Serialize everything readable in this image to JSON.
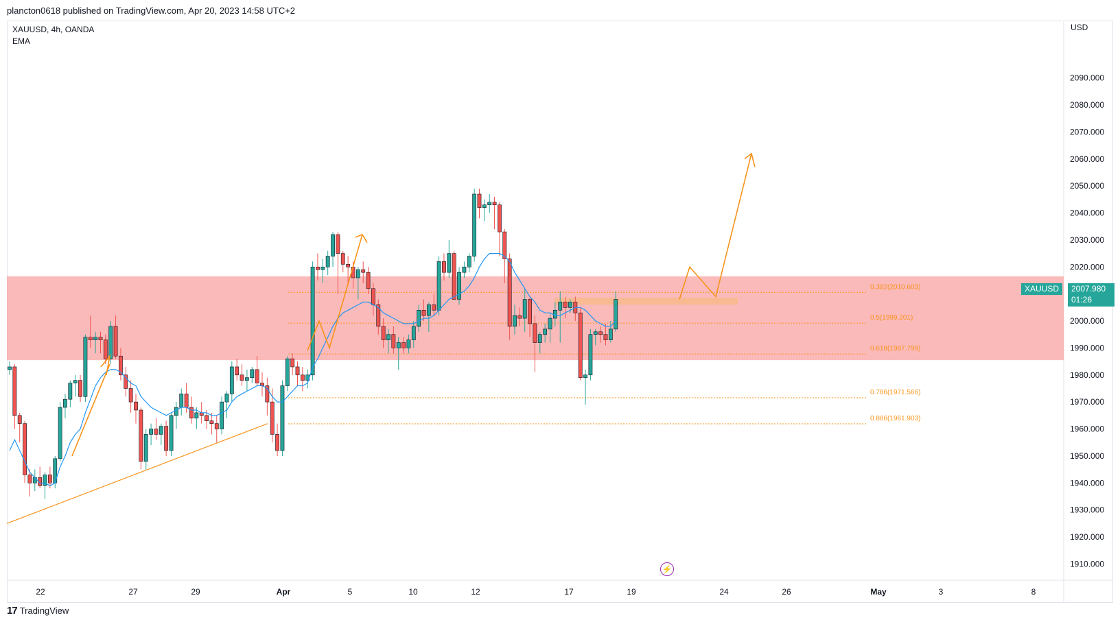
{
  "header": {
    "published": "plancton0618 published on TradingView.com, Apr 20, 2023 14:58 UTC+2"
  },
  "legend": {
    "symbol": "XAUUSD, 4h, OANDA",
    "indicator": "EMA"
  },
  "price_scale": {
    "currency": "USD"
  },
  "last_price": {
    "symbol": "XAUUSD",
    "price": "2007.980",
    "countdown": "01:26"
  },
  "footer": {
    "brand": "TradingView"
  },
  "colors": {
    "up": "#26a69a",
    "down": "#ef5350",
    "zone": "#f9a3a3",
    "ema": "#2196f3",
    "drawing": "#f7931a",
    "highlight": "#f9b98a"
  },
  "chart_data": {
    "type": "candlestick",
    "y_ticks": [
      "2090.000",
      "2080.000",
      "2070.000",
      "2060.000",
      "2050.000",
      "2040.000",
      "2030.000",
      "2020.000",
      "2010.000",
      "2000.000",
      "1990.000",
      "1980.000",
      "1970.000",
      "1960.000",
      "1950.000",
      "1940.000",
      "1930.000",
      "1920.000",
      "1910.000"
    ],
    "x_ticks": [
      {
        "label": "22",
        "bold": false
      },
      {
        "label": "27",
        "bold": false
      },
      {
        "label": "29",
        "bold": false
      },
      {
        "label": "Apr",
        "bold": true
      },
      {
        "label": "5",
        "bold": false
      },
      {
        "label": "10",
        "bold": false
      },
      {
        "label": "12",
        "bold": false
      },
      {
        "label": "17",
        "bold": false
      },
      {
        "label": "19",
        "bold": false
      },
      {
        "label": "24",
        "bold": false
      },
      {
        "label": "26",
        "bold": false
      },
      {
        "label": "May",
        "bold": true
      },
      {
        "label": "3",
        "bold": false
      },
      {
        "label": "8",
        "bold": false
      }
    ],
    "ylim": [
      1904,
      2111
    ],
    "fib_levels": [
      {
        "label": "0.382(2010.603)",
        "value": 2010.603
      },
      {
        "label": "0.5(1999.201)",
        "value": 1999.201
      },
      {
        "label": "0.618(1987.799)",
        "value": 1987.799
      },
      {
        "label": "0.786(1971.566)",
        "value": 1971.566
      },
      {
        "label": "0.886(1961.903)",
        "value": 1961.903
      }
    ],
    "zone": {
      "from": 1985.5,
      "to": 2016.5
    },
    "highlight_zone": {
      "from": 2006.0,
      "to": 2008.5
    },
    "candles": [
      [
        1982,
        1985,
        1980,
        1983
      ],
      [
        1983,
        1984,
        1960,
        1965
      ],
      [
        1965,
        1966,
        1955,
        1962
      ],
      [
        1962,
        1963,
        1940,
        1943
      ],
      [
        1943,
        1945,
        1935,
        1940
      ],
      [
        1940,
        1945,
        1937,
        1942
      ],
      [
        1942,
        1946,
        1938,
        1939
      ],
      [
        1939,
        1944,
        1934,
        1943
      ],
      [
        1943,
        1946,
        1938,
        1940
      ],
      [
        1940,
        1950,
        1938,
        1949
      ],
      [
        1949,
        1970,
        1948,
        1968
      ],
      [
        1968,
        1973,
        1964,
        1971
      ],
      [
        1971,
        1978,
        1968,
        1977
      ],
      [
        1977,
        1980,
        1972,
        1978
      ],
      [
        1978,
        1980,
        1970,
        1972
      ],
      [
        1972,
        1995,
        1970,
        1994
      ],
      [
        1994,
        2002,
        1990,
        1993
      ],
      [
        1993,
        1996,
        1988,
        1994
      ],
      [
        1994,
        1996,
        1988,
        1993
      ],
      [
        1993,
        1995,
        1984,
        1986
      ],
      [
        1986,
        2000,
        1984,
        1998
      ],
      [
        1998,
        2002,
        1986,
        1987
      ],
      [
        1987,
        1990,
        1978,
        1980
      ],
      [
        1980,
        1983,
        1972,
        1975
      ],
      [
        1975,
        1978,
        1966,
        1970
      ],
      [
        1970,
        1973,
        1962,
        1967
      ],
      [
        1967,
        1968,
        1945,
        1948
      ],
      [
        1948,
        1960,
        1945,
        1958
      ],
      [
        1958,
        1962,
        1954,
        1960
      ],
      [
        1960,
        1964,
        1956,
        1958
      ],
      [
        1958,
        1962,
        1954,
        1961
      ],
      [
        1961,
        1963,
        1950,
        1952
      ],
      [
        1952,
        1966,
        1950,
        1965
      ],
      [
        1965,
        1970,
        1960,
        1968
      ],
      [
        1968,
        1975,
        1965,
        1973
      ],
      [
        1973,
        1977,
        1966,
        1968
      ],
      [
        1968,
        1972,
        1962,
        1964
      ],
      [
        1964,
        1968,
        1960,
        1966
      ],
      [
        1966,
        1970,
        1962,
        1965
      ],
      [
        1965,
        1967,
        1960,
        1963
      ],
      [
        1963,
        1966,
        1958,
        1962
      ],
      [
        1962,
        1965,
        1955,
        1960
      ],
      [
        1960,
        1972,
        1958,
        1970
      ],
      [
        1970,
        1974,
        1964,
        1973
      ],
      [
        1973,
        1985,
        1970,
        1983
      ],
      [
        1983,
        1986,
        1978,
        1980
      ],
      [
        1980,
        1984,
        1976,
        1978
      ],
      [
        1978,
        1982,
        1974,
        1979
      ],
      [
        1979,
        1983,
        1977,
        1982
      ],
      [
        1982,
        1987,
        1976,
        1977
      ],
      [
        1977,
        1981,
        1972,
        1976
      ],
      [
        1976,
        1979,
        1965,
        1970
      ],
      [
        1970,
        1975,
        1955,
        1958
      ],
      [
        1958,
        1962,
        1950,
        1952
      ],
      [
        1952,
        1978,
        1950,
        1976
      ],
      [
        1976,
        1987,
        1974,
        1986
      ],
      [
        1986,
        1988,
        1980,
        1983
      ],
      [
        1983,
        1985,
        1976,
        1980
      ],
      [
        1980,
        1983,
        1974,
        1978
      ],
      [
        1978,
        1982,
        1975,
        1980
      ],
      [
        1980,
        2022,
        1978,
        2020
      ],
      [
        2020,
        2025,
        2015,
        2019
      ],
      [
        2019,
        2023,
        2014,
        2020
      ],
      [
        2020,
        2026,
        2017,
        2024
      ],
      [
        2024,
        2033,
        2020,
        2032
      ],
      [
        2032,
        2033,
        2010,
        2025
      ],
      [
        2025,
        2026,
        2018,
        2021
      ],
      [
        2021,
        2024,
        2014,
        2020
      ],
      [
        2020,
        2022,
        2012,
        2016
      ],
      [
        2016,
        2020,
        2008,
        2019
      ],
      [
        2019,
        2022,
        2014,
        2018
      ],
      [
        2018,
        2020,
        2010,
        2012
      ],
      [
        2012,
        2014,
        2002,
        2006
      ],
      [
        2006,
        2008,
        1995,
        1998
      ],
      [
        1998,
        2001,
        1990,
        1993
      ],
      [
        1993,
        1997,
        1988,
        1995
      ],
      [
        1995,
        1998,
        1988,
        1990
      ],
      [
        1990,
        1994,
        1982,
        1992
      ],
      [
        1992,
        1994,
        1988,
        1990
      ],
      [
        1990,
        1995,
        1988,
        1993
      ],
      [
        1993,
        2000,
        1990,
        1998
      ],
      [
        1998,
        2006,
        1996,
        2004
      ],
      [
        2004,
        2008,
        2000,
        2002
      ],
      [
        2002,
        2007,
        1996,
        2006
      ],
      [
        2006,
        2010,
        2002,
        2004
      ],
      [
        2004,
        2024,
        2002,
        2022
      ],
      [
        2022,
        2025,
        2015,
        2018
      ],
      [
        2018,
        2030,
        2016,
        2025
      ],
      [
        2025,
        2026,
        2010,
        2008
      ],
      [
        2008,
        2020,
        2006,
        2018
      ],
      [
        2018,
        2022,
        2016,
        2020
      ],
      [
        2020,
        2025,
        2018,
        2024
      ],
      [
        2024,
        2049,
        2022,
        2047
      ],
      [
        2047,
        2049,
        2038,
        2042
      ],
      [
        2042,
        2045,
        2037,
        2043
      ],
      [
        2043,
        2047,
        2040,
        2044
      ],
      [
        2044,
        2046,
        2034,
        2043
      ],
      [
        2043,
        2044,
        2024,
        2033
      ],
      [
        2033,
        2034,
        2014,
        2023
      ],
      [
        2023,
        2025,
        1993,
        1998
      ],
      [
        1998,
        2006,
        1995,
        2002
      ],
      [
        2002,
        2005,
        1998,
        2001
      ],
      [
        2001,
        2012,
        1996,
        2008
      ],
      [
        2008,
        2009,
        1994,
        1999
      ],
      [
        1999,
        2002,
        1981,
        1992
      ],
      [
        1992,
        1996,
        1988,
        1995
      ],
      [
        1995,
        1999,
        1992,
        1997
      ],
      [
        1997,
        2003,
        1992,
        2001
      ],
      [
        2001,
        2007,
        1998,
        2004
      ],
      [
        2004,
        2011,
        1992,
        2007
      ],
      [
        2007,
        2009,
        2001,
        2005
      ],
      [
        2005,
        2008,
        2003,
        2007
      ],
      [
        2007,
        2009,
        2000,
        2003
      ],
      [
        2003,
        2005,
        1978,
        1979
      ],
      [
        1979,
        1982,
        1969,
        1980
      ],
      [
        1980,
        1997,
        1978,
        1995
      ],
      [
        1995,
        1997,
        1991,
        1996
      ],
      [
        1996,
        1998,
        1992,
        1995
      ],
      [
        1995,
        1999,
        1991,
        1993
      ],
      [
        1993,
        2000,
        1992,
        1997
      ],
      [
        1997,
        2011,
        1996,
        2008
      ]
    ],
    "ema": [
      1952,
      1956,
      1952,
      1948,
      1944,
      1942,
      1940,
      1940,
      1939,
      1940,
      1946,
      1950,
      1955,
      1958,
      1960,
      1966,
      1971,
      1976,
      1979,
      1981,
      1982,
      1982,
      1981,
      1979,
      1977,
      1976,
      1972,
      1970,
      1968,
      1967,
      1966,
      1965,
      1966,
      1967,
      1968,
      1968,
      1967,
      1967,
      1966,
      1966,
      1965,
      1965,
      1966,
      1967,
      1970,
      1972,
      1973,
      1974,
      1975,
      1976,
      1976,
      1975,
      1972,
      1970,
      1970,
      1972,
      1974,
      1976,
      1976,
      1977,
      1983,
      1986,
      1990,
      1994,
      1998,
      2001,
      2003,
      2004,
      2005,
      2006,
      2007,
      2007,
      2006,
      2005,
      2003,
      2002,
      2001,
      2000,
      1999,
      1999,
      1999,
      2000,
      2001,
      2001,
      2002,
      2004,
      2006,
      2008,
      2009,
      2010,
      2011,
      2013,
      2016,
      2020,
      2023,
      2025,
      2025,
      2025,
      2024,
      2022,
      2018,
      2015,
      2012,
      2009,
      2007,
      2004,
      2003,
      2003,
      2002,
      2002,
      2003,
      2004,
      2005,
      2005,
      2004,
      2002,
      2000,
      1999,
      1998,
      1998,
      2000
    ]
  }
}
